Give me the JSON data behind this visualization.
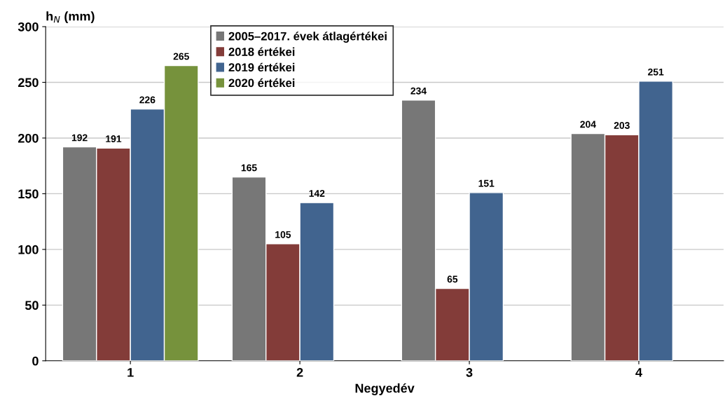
{
  "chart_data": {
    "type": "bar",
    "xlabel": "Negyedév",
    "ylabel": "h$_{N}$ (mm)",
    "categories": [
      "1",
      "2",
      "3",
      "4"
    ],
    "series": [
      {
        "name": "2005–2017. évek átlagértékei",
        "color": "#777777",
        "values": [
          192,
          165,
          234,
          204
        ]
      },
      {
        "name": "2018 értékei",
        "color": "#833c39",
        "values": [
          191,
          105,
          65,
          203
        ]
      },
      {
        "name": "2019 értékei",
        "color": "#41648f",
        "values": [
          226,
          142,
          151,
          251
        ]
      },
      {
        "name": "2020 értékei",
        "color": "#76923c",
        "values": [
          265,
          null,
          null,
          null
        ]
      }
    ],
    "ylim": [
      0,
      300
    ],
    "yticks": [
      0,
      50,
      100,
      150,
      200,
      250,
      300
    ],
    "grid": "y",
    "legend": "top",
    "data_labels": true
  }
}
